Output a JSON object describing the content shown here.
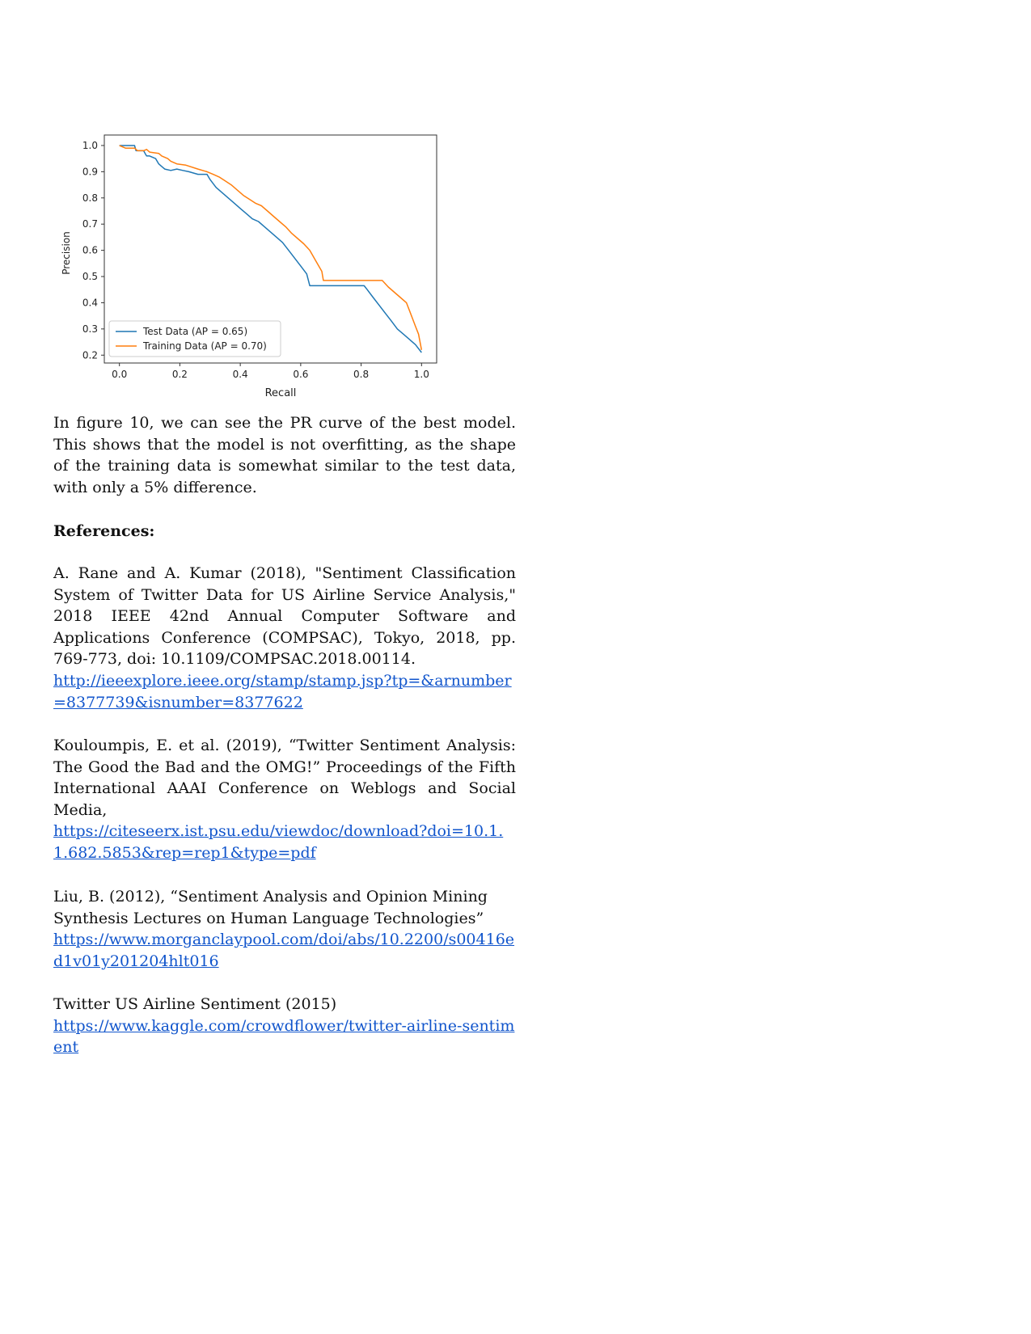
{
  "chart_data": {
    "type": "line",
    "xlabel": "Recall",
    "ylabel": "Precision",
    "xlim": [
      -0.05,
      1.05
    ],
    "ylim": [
      0.17,
      1.04
    ],
    "xticks": [
      "0.0",
      "0.2",
      "0.4",
      "0.6",
      "0.8",
      "1.0"
    ],
    "yticks": [
      "0.2",
      "0.3",
      "0.4",
      "0.5",
      "0.6",
      "0.7",
      "0.8",
      "0.9",
      "1.0"
    ],
    "legend_position": "lower-left",
    "grid": false,
    "series": [
      {
        "name": "Test Data (AP = 0.65)",
        "color": "#1f77b4",
        "points": [
          [
            0.0,
            1.0
          ],
          [
            0.05,
            1.0
          ],
          [
            0.055,
            0.98
          ],
          [
            0.08,
            0.98
          ],
          [
            0.085,
            0.97
          ],
          [
            0.09,
            0.96
          ],
          [
            0.1,
            0.96
          ],
          [
            0.12,
            0.95
          ],
          [
            0.13,
            0.93
          ],
          [
            0.14,
            0.92
          ],
          [
            0.15,
            0.91
          ],
          [
            0.17,
            0.905
          ],
          [
            0.19,
            0.91
          ],
          [
            0.21,
            0.905
          ],
          [
            0.23,
            0.9
          ],
          [
            0.26,
            0.89
          ],
          [
            0.29,
            0.89
          ],
          [
            0.3,
            0.87
          ],
          [
            0.32,
            0.84
          ],
          [
            0.34,
            0.82
          ],
          [
            0.36,
            0.8
          ],
          [
            0.38,
            0.78
          ],
          [
            0.4,
            0.76
          ],
          [
            0.42,
            0.74
          ],
          [
            0.44,
            0.72
          ],
          [
            0.46,
            0.71
          ],
          [
            0.48,
            0.69
          ],
          [
            0.5,
            0.67
          ],
          [
            0.52,
            0.65
          ],
          [
            0.54,
            0.63
          ],
          [
            0.56,
            0.6
          ],
          [
            0.58,
            0.57
          ],
          [
            0.6,
            0.54
          ],
          [
            0.62,
            0.51
          ],
          [
            0.63,
            0.465
          ],
          [
            0.81,
            0.465
          ],
          [
            0.82,
            0.45
          ],
          [
            0.84,
            0.42
          ],
          [
            0.86,
            0.39
          ],
          [
            0.88,
            0.36
          ],
          [
            0.9,
            0.33
          ],
          [
            0.92,
            0.3
          ],
          [
            0.94,
            0.28
          ],
          [
            0.96,
            0.26
          ],
          [
            0.98,
            0.24
          ],
          [
            1.0,
            0.21
          ]
        ]
      },
      {
        "name": "Training Data (AP = 0.70)",
        "color": "#ff7f0e",
        "points": [
          [
            0.0,
            1.0
          ],
          [
            0.02,
            0.99
          ],
          [
            0.05,
            0.99
          ],
          [
            0.06,
            0.98
          ],
          [
            0.08,
            0.98
          ],
          [
            0.09,
            0.985
          ],
          [
            0.1,
            0.975
          ],
          [
            0.13,
            0.97
          ],
          [
            0.14,
            0.96
          ],
          [
            0.16,
            0.95
          ],
          [
            0.17,
            0.94
          ],
          [
            0.19,
            0.93
          ],
          [
            0.22,
            0.925
          ],
          [
            0.26,
            0.91
          ],
          [
            0.29,
            0.9
          ],
          [
            0.31,
            0.89
          ],
          [
            0.33,
            0.88
          ],
          [
            0.35,
            0.865
          ],
          [
            0.37,
            0.85
          ],
          [
            0.39,
            0.83
          ],
          [
            0.41,
            0.81
          ],
          [
            0.43,
            0.795
          ],
          [
            0.45,
            0.78
          ],
          [
            0.47,
            0.77
          ],
          [
            0.49,
            0.75
          ],
          [
            0.51,
            0.73
          ],
          [
            0.53,
            0.71
          ],
          [
            0.55,
            0.69
          ],
          [
            0.57,
            0.665
          ],
          [
            0.59,
            0.645
          ],
          [
            0.61,
            0.625
          ],
          [
            0.63,
            0.6
          ],
          [
            0.65,
            0.56
          ],
          [
            0.67,
            0.52
          ],
          [
            0.675,
            0.485
          ],
          [
            0.87,
            0.485
          ],
          [
            0.89,
            0.46
          ],
          [
            0.91,
            0.44
          ],
          [
            0.93,
            0.42
          ],
          [
            0.95,
            0.4
          ],
          [
            0.96,
            0.37
          ],
          [
            0.97,
            0.34
          ],
          [
            0.98,
            0.31
          ],
          [
            0.99,
            0.28
          ],
          [
            1.0,
            0.22
          ]
        ]
      }
    ]
  },
  "text": {
    "paragraph": "In figure 10, we can see the PR curve of the best model. This shows that the model is not overfitting, as the shape of the training data is somewhat similar to the test data, with only a 5% difference.",
    "references_heading": "References:"
  },
  "references": {
    "ref1_text": "A. Rane and A. Kumar (2018), \"Sentiment Classification System of Twitter Data for US Airline Service Analysis,\" 2018 IEEE 42nd Annual Computer Software and Applications Conference (COMPSAC), Tokyo, 2018, pp. 769-773, doi: 10.1109/COMPSAC.2018.00114.",
    "ref1_link": "http://ieeexplore.ieee.org/stamp/stamp.jsp?tp=&arnumber=8377739&isnumber=8377622",
    "ref2_text": "Kouloumpis, E. et al. (2019), “Twitter Sentiment Analysis: The Good the Bad and the OMG!” Proceedings of the Fifth International AAAI Conference on Weblogs and Social Media,",
    "ref2_link": "https://citeseerx.ist.psu.edu/viewdoc/download?doi=10.1.1.682.5853&rep=rep1&type=pdf",
    "ref3_text": "Liu, B. (2012), “Sentiment Analysis and Opinion Mining Synthesis Lectures on Human Language Technologies”",
    "ref3_link": "https://www.morganclaypool.com/doi/abs/10.2200/s00416ed1v01y201204hlt016",
    "ref4_text": "Twitter US Airline Sentiment (2015)",
    "ref4_link": "https://www.kaggle.com/crowdflower/twitter-airline-sentiment"
  }
}
